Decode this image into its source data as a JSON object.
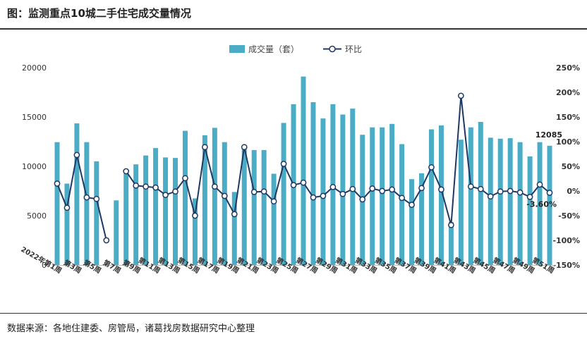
{
  "page": {
    "title": "图：监测重点10城二手住宅成交量情况",
    "source": "数据来源：各地住建委、房管局，诸葛找房数据研究中心整理"
  },
  "colors": {
    "bar": "#4bacc6",
    "line": "#1f3864",
    "marker_fill": "#ffffff"
  },
  "chart_data": {
    "type": "bar",
    "title": "",
    "xlabel": "",
    "ylabel": "",
    "legend": [
      {
        "name": "成交量（套）",
        "kind": "bar"
      },
      {
        "name": "环比",
        "kind": "line"
      }
    ],
    "legend_position": "top-center",
    "categories": [
      "2022年第1周",
      "第2周",
      "第3周",
      "第4周",
      "第5周",
      "第6周",
      "第7周",
      "第8周",
      "第9周",
      "第10周",
      "第11周",
      "第12周",
      "第13周",
      "第14周",
      "第15周",
      "第16周",
      "第17周",
      "第18周",
      "第19周",
      "第20周",
      "第21周",
      "第22周",
      "第23周",
      "第24周",
      "第25周",
      "第26周",
      "第27周",
      "第28周",
      "第29周",
      "第30周",
      "第31周",
      "第32周",
      "第33周",
      "第34周",
      "第35周",
      "第36周",
      "第37周",
      "第38周",
      "第39周",
      "第40周",
      "第41周",
      "第42周",
      "第43周",
      "第44周",
      "第45周",
      "第46周",
      "第47周",
      "第48周",
      "第49周",
      "第50周",
      "第51周"
    ],
    "x_tick_labels": [
      "2022年第1周",
      "第3周",
      "第5周",
      "第7周",
      "第9周",
      "第11周",
      "第13周",
      "第15周",
      "第17周",
      "第19周",
      "第21周",
      "第23周",
      "第25周",
      "第27周",
      "第29周",
      "第31周",
      "第33周",
      "第35周",
      "第37周",
      "第39周",
      "第41周",
      "第43周",
      "第45周",
      "第47周",
      "第49周",
      "第51周"
    ],
    "series": [
      {
        "name": "成交量（套）",
        "axis": "left",
        "values": [
          12450,
          8250,
          14350,
          12450,
          10500,
          null,
          6550,
          9250,
          10200,
          11100,
          11850,
          10900,
          10850,
          13600,
          6750,
          13150,
          13900,
          12450,
          7400,
          11800,
          11650,
          11650,
          9250,
          14400,
          16300,
          19100,
          16500,
          14850,
          16300,
          15250,
          15850,
          13200,
          13950,
          13950,
          14300,
          12250,
          8700,
          9300,
          13750,
          14150,
          4350,
          12700,
          13950,
          14500,
          12900,
          12800,
          12850,
          12450,
          11000,
          12450,
          12085
        ]
      },
      {
        "name": "环比",
        "axis": "right",
        "unit": "%",
        "values": [
          15,
          -34,
          73,
          -13,
          -16,
          -100,
          null,
          40,
          11,
          9,
          7,
          -8,
          -1,
          26,
          -50,
          89,
          9,
          -10,
          -47,
          89,
          -2,
          -1,
          -21,
          55,
          12,
          17,
          -13,
          -10,
          8,
          -6,
          4,
          -17,
          5,
          0,
          3,
          -14,
          -28,
          6,
          48,
          3,
          -69,
          193,
          9,
          4,
          -11,
          -1,
          0,
          -3,
          -12,
          13,
          -3.6
        ]
      }
    ],
    "left_axis": {
      "ylim": [
        0,
        20000
      ],
      "ticks": [
        "0",
        "5000",
        "10000",
        "15000",
        "20000"
      ]
    },
    "right_axis": {
      "ylim": [
        -150,
        250
      ],
      "ticks": [
        "-150%",
        "-100%",
        "-50%",
        "0%",
        "50%",
        "100%",
        "150%",
        "200%",
        "250%"
      ]
    },
    "annotations": [
      {
        "text": "12085",
        "target": "成交量（套）",
        "index": 50
      },
      {
        "text": "-3.60%",
        "target": "环比",
        "index": 50
      }
    ],
    "grid": false
  }
}
